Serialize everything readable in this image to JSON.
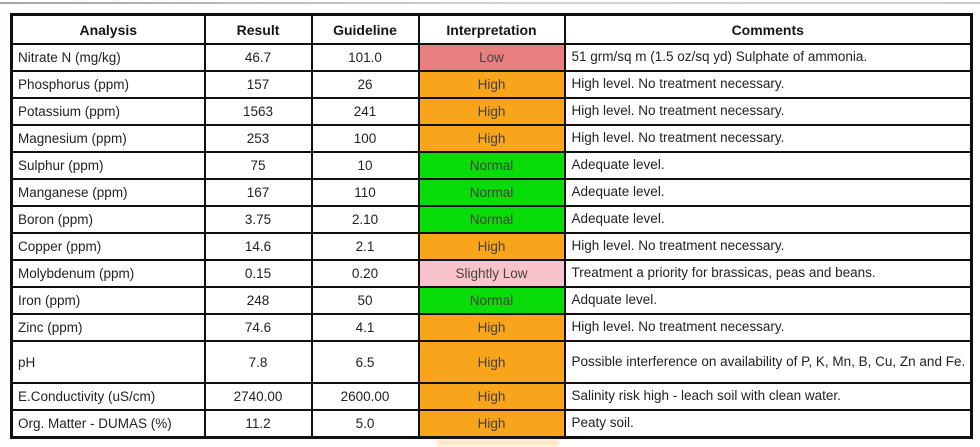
{
  "table": {
    "columns": [
      "Analysis",
      "Result",
      "Guideline",
      "Interpretation",
      "Comments"
    ],
    "rows": [
      {
        "analysis": "Nitrate N (mg/kg)",
        "result": "46.7",
        "guideline": "101.0",
        "interpretation": "Low",
        "status": "low",
        "comments": "51 grm/sq m (1.5 oz/sq yd) Sulphate of ammonia."
      },
      {
        "analysis": "Phosphorus (ppm)",
        "result": "157",
        "guideline": "26",
        "interpretation": "High",
        "status": "high",
        "comments": "High level. No treatment necessary."
      },
      {
        "analysis": "Potassium (ppm)",
        "result": "1563",
        "guideline": "241",
        "interpretation": "High",
        "status": "high",
        "comments": "High level. No treatment necessary."
      },
      {
        "analysis": "Magnesium (ppm)",
        "result": "253",
        "guideline": "100",
        "interpretation": "High",
        "status": "high",
        "comments": "High level. No treatment necessary."
      },
      {
        "analysis": "Sulphur (ppm)",
        "result": "75",
        "guideline": "10",
        "interpretation": "Normal",
        "status": "normal",
        "comments": "Adequate level."
      },
      {
        "analysis": "Manganese (ppm)",
        "result": "167",
        "guideline": "110",
        "interpretation": "Normal",
        "status": "normal",
        "comments": "Adequate level."
      },
      {
        "analysis": "Boron (ppm)",
        "result": "3.75",
        "guideline": "2.10",
        "interpretation": "Normal",
        "status": "normal",
        "comments": "Adequate level."
      },
      {
        "analysis": "Copper (ppm)",
        "result": "14.6",
        "guideline": "2.1",
        "interpretation": "High",
        "status": "high",
        "comments": "High level. No treatment necessary."
      },
      {
        "analysis": "Molybdenum (ppm)",
        "result": "0.15",
        "guideline": "0.20",
        "interpretation": "Slightly Low",
        "status": "slightly_low",
        "comments": "Treatment a priority for brassicas, peas and beans."
      },
      {
        "analysis": "Iron (ppm)",
        "result": "248",
        "guideline": "50",
        "interpretation": "Normal",
        "status": "normal",
        "comments": "Adquate level."
      },
      {
        "analysis": "Zinc (ppm)",
        "result": "74.6",
        "guideline": "4.1",
        "interpretation": "High",
        "status": "high",
        "comments": "High level. No treatment necessary."
      },
      {
        "analysis": "pH",
        "result": "7.8",
        "guideline": "6.5",
        "interpretation": "High",
        "status": "high",
        "comments": "Possible interference on availability of P, K, Mn, B, Cu, Zn and Fe."
      },
      {
        "analysis": "E.Conductivity (uS/cm)",
        "result": "2740.00",
        "guideline": "2600.00",
        "interpretation": "High",
        "status": "high",
        "comments": "Salinity risk high - leach soil with clean water."
      },
      {
        "analysis": "Org. Matter - DUMAS (%)",
        "result": "11.2",
        "guideline": "5.0",
        "interpretation": "High",
        "status": "high",
        "comments": "Peaty soil."
      }
    ]
  },
  "status_colors": {
    "low": "#E88082",
    "high": "#F9A51B",
    "normal": "#09DD09",
    "slightly_low": "#F8C3CD"
  }
}
